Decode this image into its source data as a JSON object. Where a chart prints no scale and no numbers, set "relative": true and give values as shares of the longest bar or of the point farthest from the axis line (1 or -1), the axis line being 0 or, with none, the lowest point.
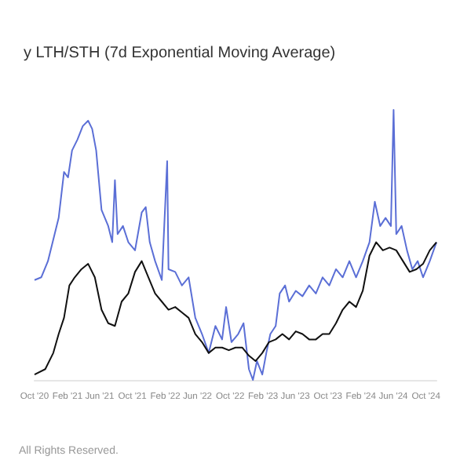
{
  "chart_data": {
    "type": "line",
    "title": "y LTH/STH (7d Exponential Moving Average)",
    "relative": true,
    "annotations": [
      "All Rights Reserved."
    ],
    "xlim": [
      "2020-10-01",
      "2024-11-09"
    ],
    "xticks": [
      {
        "value": "2020-10-01",
        "label": "Oct '20"
      },
      {
        "value": "2021-02-01",
        "label": "Feb '21"
      },
      {
        "value": "2021-06-01",
        "label": "Jun '21"
      },
      {
        "value": "2021-10-01",
        "label": "Oct '21"
      },
      {
        "value": "2022-02-01",
        "label": "Feb '22"
      },
      {
        "value": "2022-06-01",
        "label": "Jun '22"
      },
      {
        "value": "2022-10-01",
        "label": "Oct '22"
      },
      {
        "value": "2023-02-01",
        "label": "Feb '23"
      },
      {
        "value": "2023-06-01",
        "label": "Jun '23"
      },
      {
        "value": "2023-10-01",
        "label": "Oct '23"
      },
      {
        "value": "2024-02-01",
        "label": "Feb '24"
      },
      {
        "value": "2024-06-01",
        "label": "Jun '24"
      },
      {
        "value": "2024-10-01",
        "label": "Oct '24"
      }
    ],
    "series": [
      {
        "color": "#5b6fd6",
        "x": [
          "2020-10-01",
          "2020-10-26",
          "2020-11-20",
          "2020-12-15",
          "2020-12-30",
          "2021-01-19",
          "2021-02-03",
          "2021-02-18",
          "2021-03-10",
          "2021-03-30",
          "2021-04-19",
          "2021-05-04",
          "2021-05-19",
          "2021-06-08",
          "2021-07-03",
          "2021-07-18",
          "2021-07-28",
          "2021-08-07",
          "2021-08-27",
          "2021-09-16",
          "2021-10-11",
          "2021-11-05",
          "2021-11-20",
          "2021-12-05",
          "2021-12-25",
          "2022-01-19",
          "2022-02-08",
          "2022-02-13",
          "2022-03-10",
          "2022-04-04",
          "2022-04-29",
          "2022-05-24",
          "2022-06-18",
          "2022-07-13",
          "2022-08-07",
          "2022-09-01",
          "2022-09-16",
          "2022-10-06",
          "2022-10-31",
          "2022-11-20",
          "2022-12-10",
          "2022-12-25",
          "2023-01-09",
          "2023-01-29",
          "2023-02-13",
          "2023-02-28",
          "2023-03-20",
          "2023-04-04",
          "2023-04-24",
          "2023-05-09",
          "2023-06-03",
          "2023-06-28",
          "2023-07-23",
          "2023-08-17",
          "2023-09-11",
          "2023-10-06",
          "2023-10-31",
          "2023-11-25",
          "2023-12-20",
          "2024-01-14",
          "2024-02-08",
          "2024-03-04",
          "2024-03-24",
          "2024-04-13",
          "2024-05-03",
          "2024-05-23",
          "2024-06-02",
          "2024-06-12",
          "2024-07-02",
          "2024-07-22",
          "2024-08-11",
          "2024-08-31",
          "2024-09-20",
          "2024-10-15",
          "2024-11-09"
        ],
        "values": [
          0.37,
          0.38,
          0.44,
          0.54,
          0.6,
          0.77,
          0.75,
          0.85,
          0.89,
          0.94,
          0.96,
          0.93,
          0.85,
          0.63,
          0.57,
          0.51,
          0.74,
          0.54,
          0.57,
          0.51,
          0.48,
          0.62,
          0.64,
          0.51,
          0.44,
          0.37,
          0.81,
          0.41,
          0.4,
          0.35,
          0.38,
          0.23,
          0.17,
          0.1,
          0.2,
          0.15,
          0.27,
          0.14,
          0.17,
          0.21,
          0.04,
          0,
          0.07,
          0.02,
          0.1,
          0.17,
          0.2,
          0.32,
          0.35,
          0.29,
          0.33,
          0.31,
          0.35,
          0.32,
          0.38,
          0.35,
          0.41,
          0.38,
          0.44,
          0.38,
          0.44,
          0.51,
          0.66,
          0.57,
          0.6,
          0.57,
          1,
          0.54,
          0.57,
          0.48,
          0.41,
          0.44,
          0.38,
          0.44,
          0.51
        ]
      },
      {
        "color": "#111111",
        "x": [
          "2020-10-01",
          "2020-11-10",
          "2020-12-10",
          "2020-12-30",
          "2021-01-19",
          "2021-02-08",
          "2021-02-28",
          "2021-03-25",
          "2021-04-19",
          "2021-05-14",
          "2021-06-08",
          "2021-07-03",
          "2021-07-28",
          "2021-08-22",
          "2021-09-16",
          "2021-10-11",
          "2021-11-05",
          "2021-11-30",
          "2021-12-25",
          "2022-01-19",
          "2022-02-13",
          "2022-03-10",
          "2022-04-04",
          "2022-04-29",
          "2022-05-24",
          "2022-06-18",
          "2022-07-13",
          "2022-08-07",
          "2022-09-01",
          "2022-09-26",
          "2022-10-21",
          "2022-11-15",
          "2022-12-10",
          "2023-01-04",
          "2023-01-29",
          "2023-02-23",
          "2023-03-20",
          "2023-04-14",
          "2023-05-09",
          "2023-06-03",
          "2023-06-28",
          "2023-07-23",
          "2023-08-17",
          "2023-09-11",
          "2023-10-06",
          "2023-10-31",
          "2023-11-25",
          "2023-12-20",
          "2024-01-14",
          "2024-02-08",
          "2024-03-04",
          "2024-03-29",
          "2024-04-23",
          "2024-05-18",
          "2024-06-12",
          "2024-07-07",
          "2024-08-01",
          "2024-08-26",
          "2024-09-20",
          "2024-10-15",
          "2024-11-09"
        ],
        "values": [
          0.02,
          0.04,
          0.1,
          0.17,
          0.23,
          0.35,
          0.38,
          0.41,
          0.43,
          0.38,
          0.26,
          0.21,
          0.2,
          0.29,
          0.32,
          0.4,
          0.44,
          0.38,
          0.32,
          0.29,
          0.26,
          0.27,
          0.25,
          0.23,
          0.17,
          0.14,
          0.1,
          0.12,
          0.12,
          0.11,
          0.12,
          0.12,
          0.09,
          0.07,
          0.1,
          0.14,
          0.15,
          0.17,
          0.15,
          0.18,
          0.17,
          0.15,
          0.15,
          0.17,
          0.17,
          0.21,
          0.26,
          0.29,
          0.27,
          0.33,
          0.46,
          0.51,
          0.48,
          0.49,
          0.48,
          0.44,
          0.4,
          0.41,
          0.43,
          0.48,
          0.51
        ]
      }
    ]
  }
}
